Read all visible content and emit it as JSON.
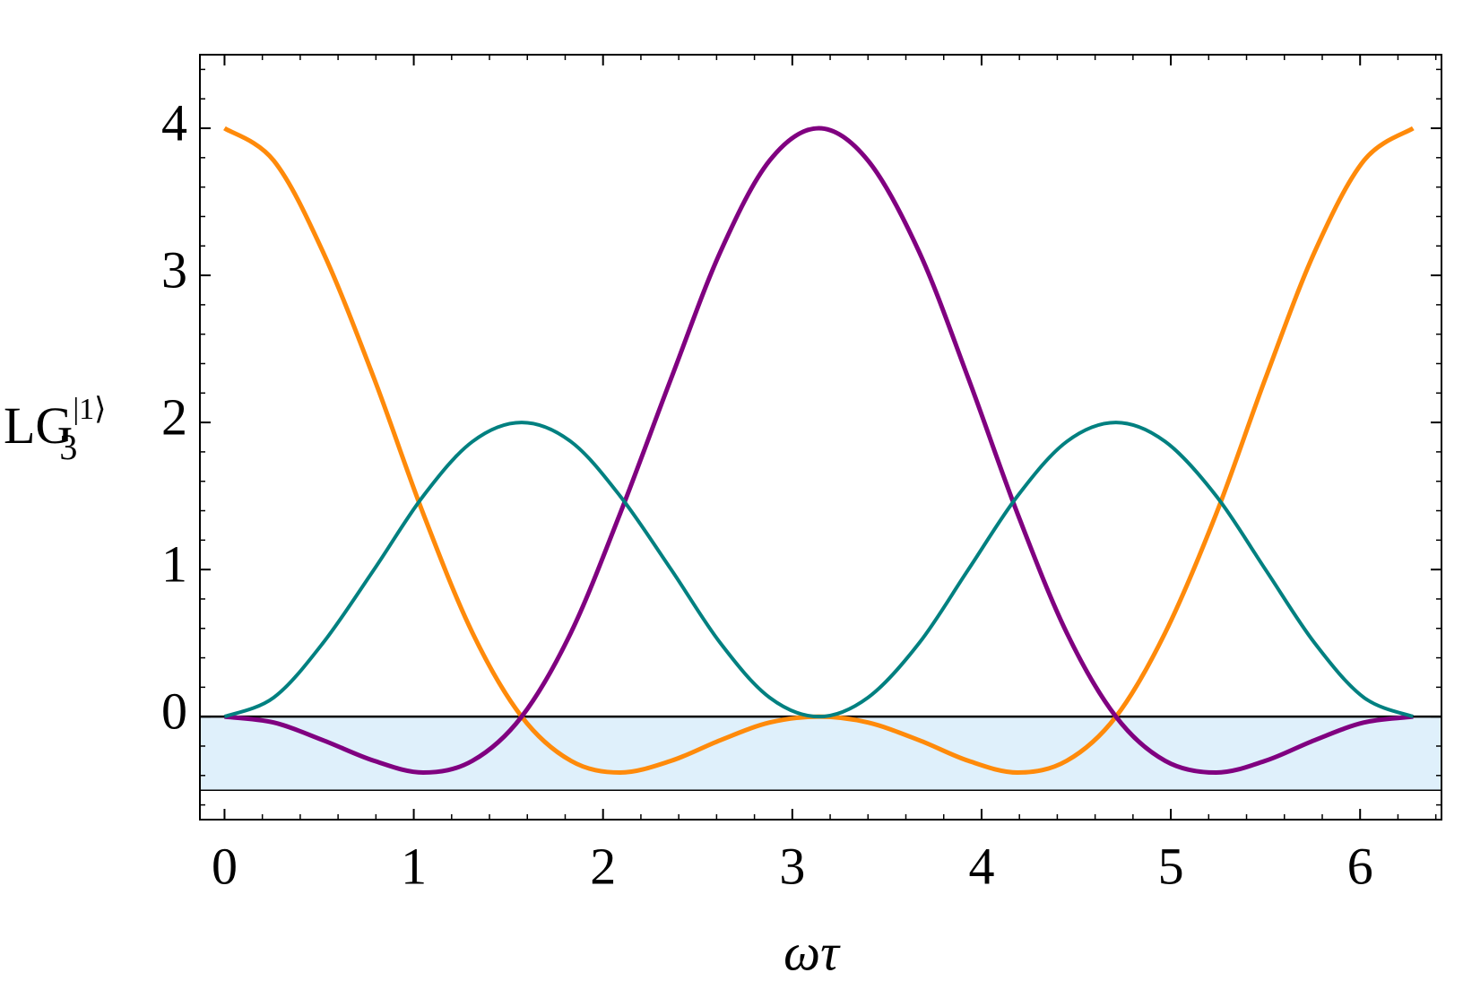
{
  "chart_data": {
    "type": "line",
    "xlabel": "ωτ",
    "ylabel": {
      "main": "LG",
      "sub": "3",
      "sup": "|1⟩"
    },
    "x": [
      0,
      0.26,
      0.52,
      0.79,
      1.05,
      1.31,
      1.57,
      1.83,
      2.09,
      2.36,
      2.62,
      2.88,
      3.14,
      3.4,
      3.67,
      3.93,
      4.19,
      4.45,
      4.71,
      4.97,
      5.24,
      5.5,
      5.76,
      6.02,
      6.28
    ],
    "series": [
      {
        "color": "#ff8a0a",
        "width": 5,
        "values": [
          4,
          3.78,
          3.16,
          2.3,
          1.38,
          0.57,
          0,
          -0.3,
          -0.38,
          -0.3,
          -0.16,
          -0.04,
          0,
          -0.04,
          -0.16,
          -0.3,
          -0.38,
          -0.3,
          0,
          0.57,
          1.38,
          2.3,
          3.16,
          3.78,
          4
        ]
      },
      {
        "color": "#800080",
        "width": 5,
        "values": [
          0,
          -0.04,
          -0.16,
          -0.3,
          -0.38,
          -0.3,
          0,
          0.57,
          1.38,
          2.3,
          3.16,
          3.78,
          4,
          3.78,
          3.16,
          2.3,
          1.38,
          0.57,
          0,
          -0.3,
          -0.38,
          -0.3,
          -0.16,
          -0.04,
          0
        ]
      },
      {
        "color": "#008080",
        "width": 4,
        "values": [
          0,
          0.13,
          0.5,
          1,
          1.5,
          1.87,
          2,
          1.87,
          1.5,
          1,
          0.5,
          0.13,
          0,
          0.13,
          0.5,
          1,
          1.5,
          1.87,
          2,
          1.87,
          1.5,
          1,
          0.5,
          0.13,
          0
        ]
      }
    ],
    "band": {
      "range": [
        -0.5,
        0
      ],
      "color": "#dff0fb"
    },
    "xlim": [
      -0.13,
      6.43
    ],
    "ylim": [
      -0.7,
      4.5
    ],
    "xticks": [
      0,
      1,
      2,
      3,
      4,
      5,
      6
    ],
    "yticks": [
      0,
      1,
      2,
      3,
      4
    ],
    "minor_ticks": true
  }
}
